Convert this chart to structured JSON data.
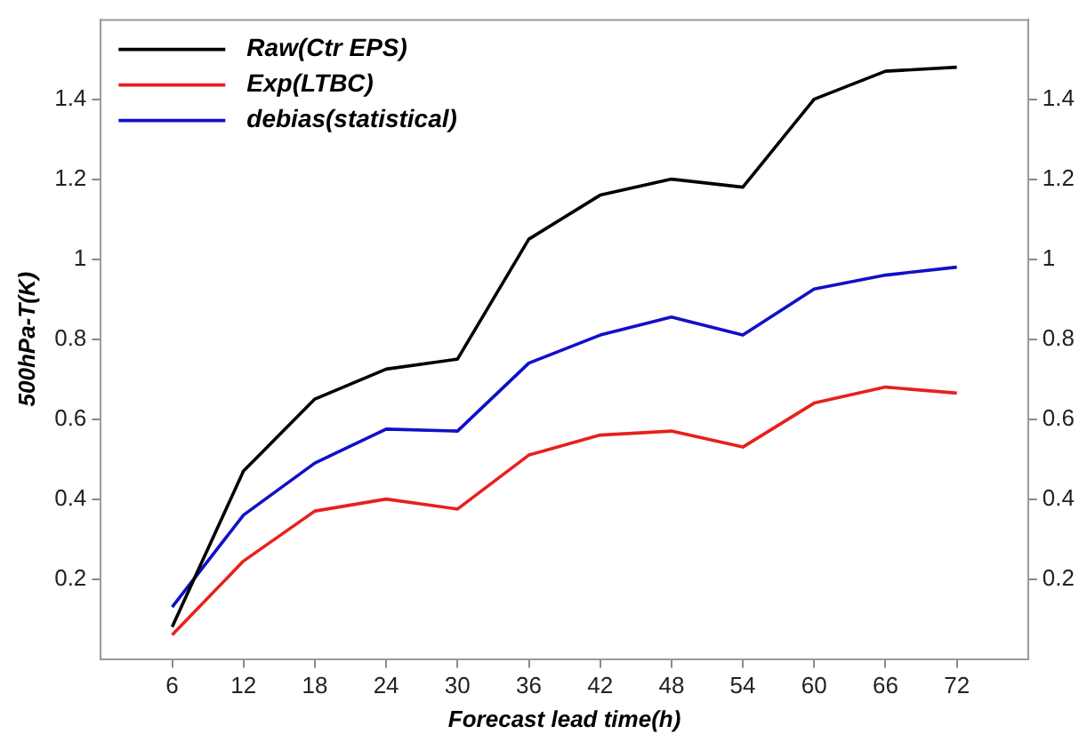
{
  "chart_data": {
    "type": "line",
    "xlabel": "Forecast lead time(h)",
    "ylabel": "500hPa-T(K)",
    "x": [
      6,
      12,
      18,
      24,
      30,
      36,
      42,
      48,
      54,
      60,
      66,
      72
    ],
    "xlim": [
      0,
      78
    ],
    "xticks": [
      6,
      12,
      18,
      24,
      30,
      36,
      42,
      48,
      54,
      60,
      66,
      72
    ],
    "ylim": [
      0,
      1.6
    ],
    "yticks": [
      0.2,
      0.4,
      0.6,
      0.8,
      1,
      1.2,
      1.4
    ],
    "y2lim": [
      0,
      1.6
    ],
    "y2ticks": [
      0.2,
      0.4,
      0.6,
      0.8,
      1,
      1.2,
      1.4
    ],
    "legend": "top left",
    "grid": false,
    "marker": "none",
    "line_style": "solid",
    "series": [
      {
        "name": "Raw(Ctr EPS)",
        "color": "#000000",
        "values": [
          0.08,
          0.47,
          0.65,
          0.725,
          0.75,
          1.05,
          1.16,
          1.2,
          1.18,
          1.4,
          1.47,
          1.48
        ]
      },
      {
        "name": "Exp(LTBC)",
        "color": "#e8201c",
        "values": [
          0.06,
          0.245,
          0.37,
          0.4,
          0.375,
          0.51,
          0.56,
          0.57,
          0.53,
          0.64,
          0.68,
          0.665
        ]
      },
      {
        "name": "debias(statistical)",
        "color": "#1010c8",
        "values": [
          0.13,
          0.36,
          0.49,
          0.575,
          0.57,
          0.74,
          0.81,
          0.855,
          0.81,
          0.925,
          0.96,
          0.98
        ]
      }
    ]
  }
}
